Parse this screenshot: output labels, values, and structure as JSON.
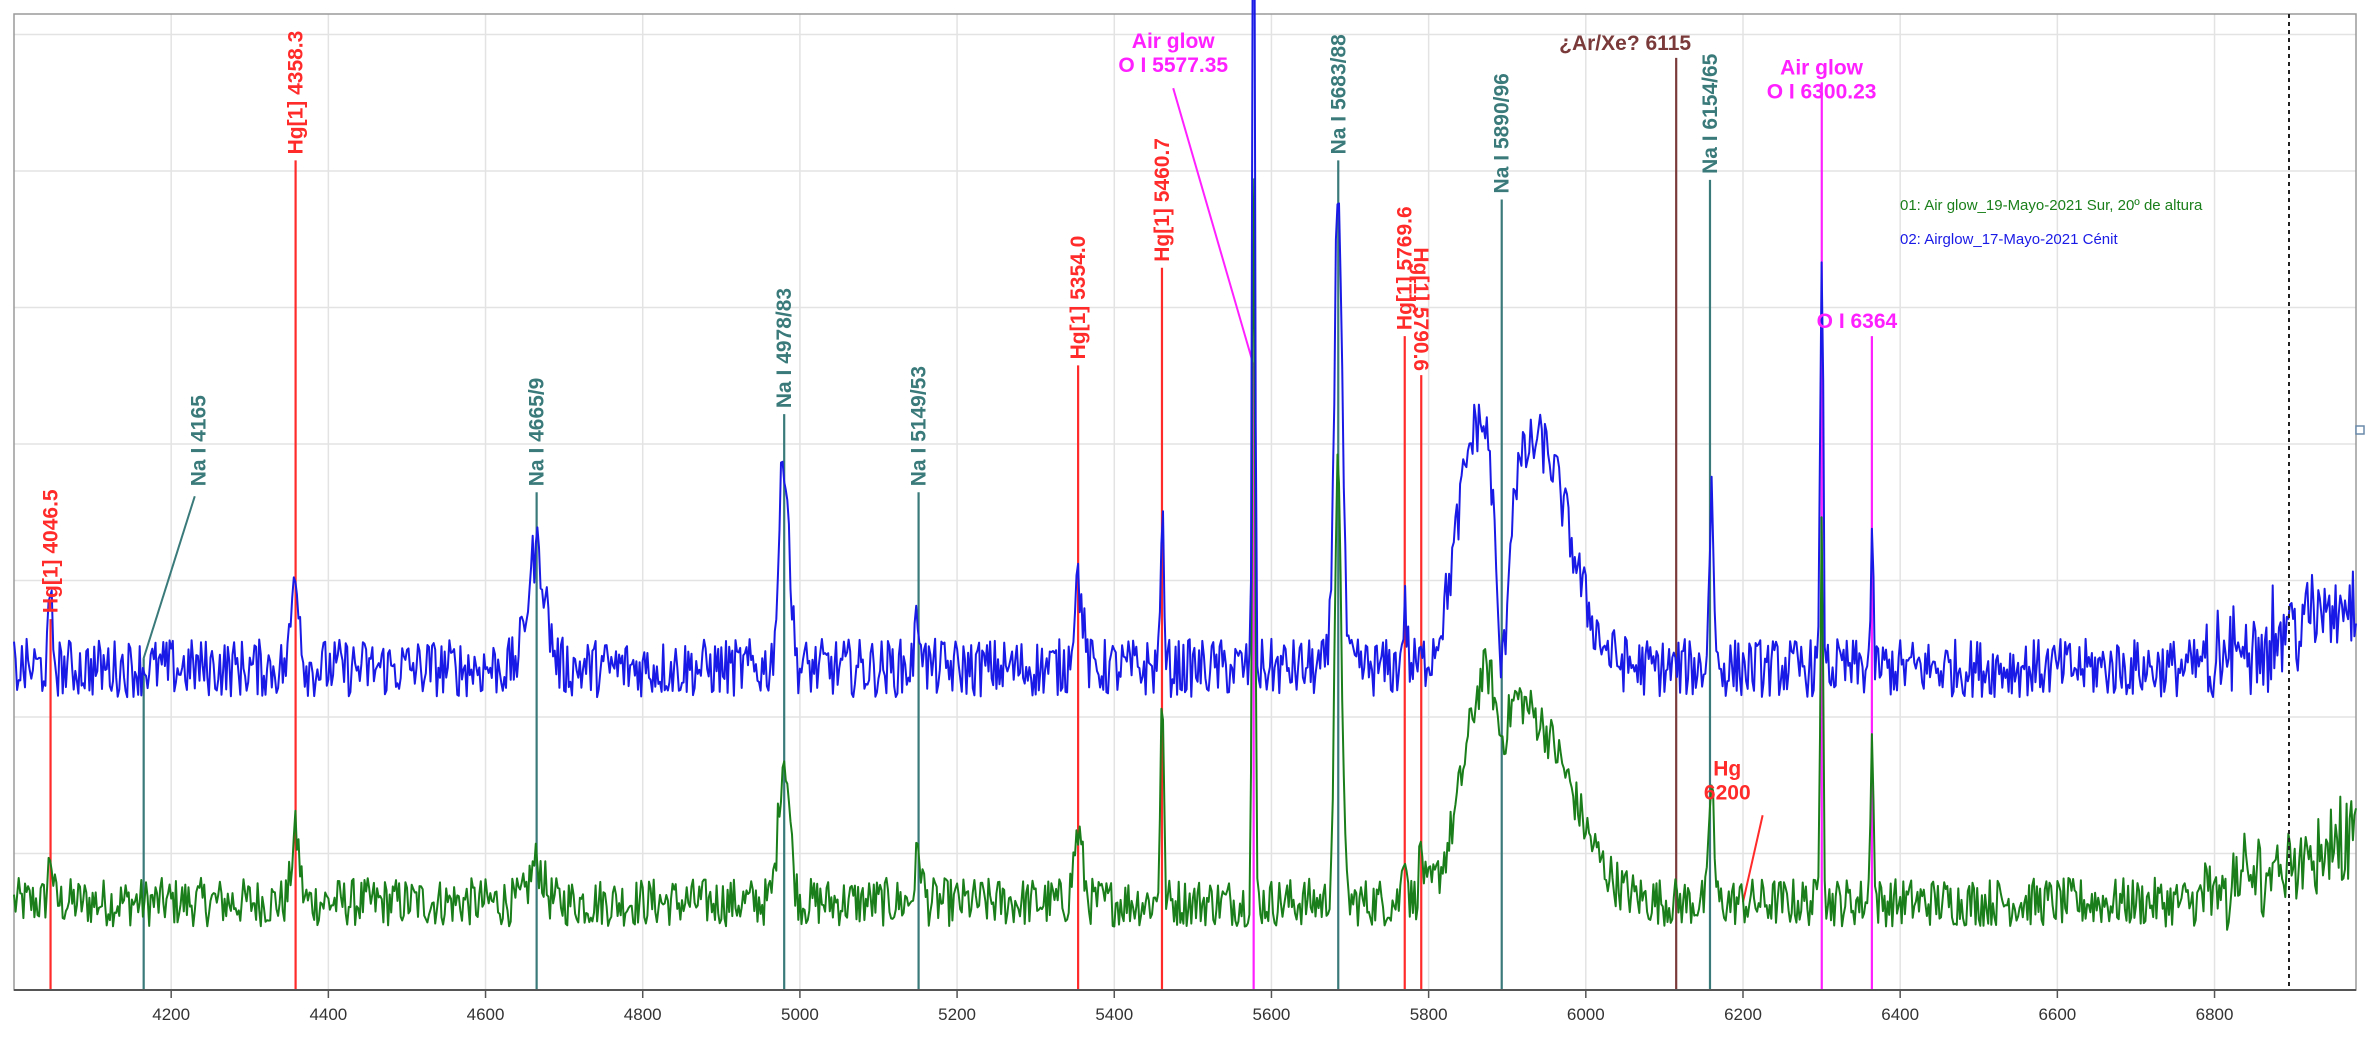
{
  "chart_data": {
    "type": "line",
    "title": "",
    "xlabel": "",
    "ylabel": "",
    "xlim": [
      4000,
      6980
    ],
    "ylim": [
      0,
      1
    ],
    "grid": true,
    "legend_position": "right",
    "x_ticks": [
      4200,
      4400,
      4600,
      4800,
      5000,
      5200,
      5400,
      5600,
      5800,
      6000,
      6200,
      6400,
      6600,
      6800
    ],
    "series": [
      {
        "name": "01: Air glow_19-Mayo-2021 Sur, 20º de altura",
        "color": "#1a7f1a",
        "baseline": 0.09,
        "noise": 0.025,
        "peaks": [
          [
            4046.5,
            0.05,
            4
          ],
          [
            4358.3,
            0.07,
            7
          ],
          [
            4665,
            0.04,
            12
          ],
          [
            4980,
            0.15,
            10
          ],
          [
            5151,
            0.05,
            6
          ],
          [
            5354,
            0.07,
            8
          ],
          [
            5460.7,
            0.22,
            3
          ],
          [
            5577.35,
            0.78,
            2.5
          ],
          [
            5685,
            0.45,
            6
          ],
          [
            5769.6,
            0.06,
            4
          ],
          [
            5790.6,
            0.05,
            4
          ],
          [
            5870,
            0.16,
            40
          ],
          [
            5935,
            0.18,
            70
          ],
          [
            6160,
            0.13,
            4
          ],
          [
            6300.23,
            0.42,
            2.5
          ],
          [
            6364,
            0.19,
            2.5
          ]
        ],
        "dip": [
          5893,
          -0.07,
          12
        ]
      },
      {
        "name": "02: Airglow_17-Mayo-2021 Cénit",
        "color": "#1a1ae6",
        "baseline": 0.33,
        "noise": 0.03,
        "peaks": [
          [
            4046.5,
            0.06,
            4
          ],
          [
            4358.3,
            0.1,
            7
          ],
          [
            4665,
            0.12,
            16
          ],
          [
            4980,
            0.22,
            9
          ],
          [
            5151,
            0.05,
            6
          ],
          [
            5354,
            0.09,
            8
          ],
          [
            5460.7,
            0.16,
            3
          ],
          [
            5577.35,
            0.98,
            2.2
          ],
          [
            5685,
            0.5,
            7
          ],
          [
            5769.6,
            0.06,
            4
          ],
          [
            5860,
            0.22,
            35
          ],
          [
            5940,
            0.23,
            55
          ],
          [
            6160,
            0.18,
            4
          ],
          [
            6300.23,
            0.44,
            2.5
          ],
          [
            6364,
            0.12,
            2.5
          ]
        ],
        "dip": [
          5893,
          -0.2,
          10
        ]
      }
    ],
    "line_markers": [
      {
        "wavelength": 4046.5,
        "label": "Hg[1] 4046.5",
        "color": "#ff2a2a",
        "top": 0.38,
        "rot": 270
      },
      {
        "wavelength": 4358.3,
        "label": "Hg[1] 4358.3",
        "color": "#ff2a2a",
        "top": 0.85,
        "rot": 270
      },
      {
        "wavelength": 4165,
        "label": "Na I 4165",
        "color": "#3a7a7a",
        "top": 0.51,
        "rot": 270,
        "text_x": 4235,
        "line_top": 0.34,
        "leader_to": 4230
      },
      {
        "wavelength": 4665,
        "label": "Na I 4665/9",
        "color": "#3a7a7a",
        "top": 0.51,
        "rot": 270
      },
      {
        "wavelength": 4980,
        "label": "Na I 4978/83",
        "color": "#3a7a7a",
        "top": 0.59,
        "rot": 270
      },
      {
        "wavelength": 5151,
        "label": "Na I 5149/53",
        "color": "#3a7a7a",
        "top": 0.51,
        "rot": 270
      },
      {
        "wavelength": 5354,
        "label": "Hg[1] 5354.0",
        "color": "#ff2a2a",
        "top": 0.64,
        "rot": 270
      },
      {
        "wavelength": 5460.7,
        "label": "Hg[1] 5460.7",
        "color": "#ff2a2a",
        "top": 0.74,
        "rot": 270
      },
      {
        "wavelength": 5577.35,
        "label": "Air glow",
        "label2": "O I 5577.35",
        "color": "#ff20ff",
        "top": 0.64,
        "rot": 0,
        "text_x": 5475,
        "text_y": 0.965,
        "leader_to": 5475
      },
      {
        "wavelength": 5685,
        "label": "Na I 5683/88",
        "color": "#3a7a7a",
        "top": 0.85,
        "rot": 270
      },
      {
        "wavelength": 5769.6,
        "label": "Hg[1] 5769.6",
        "color": "#ff2a2a",
        "top": 0.67,
        "rot": 270
      },
      {
        "wavelength": 5790.6,
        "label": "Hg[1] 5790.6",
        "color": "#ff2a2a",
        "top": 0.63,
        "rot": 90
      },
      {
        "wavelength": 5893,
        "label": "Na I 5890/96",
        "color": "#3a7a7a",
        "top": 0.81,
        "rot": 270
      },
      {
        "wavelength": 6115,
        "label": "¿Ar/Xe? 6115",
        "color": "#7a3a3a",
        "top": 0.955,
        "rot": 0,
        "text_x": 6050
      },
      {
        "wavelength": 6158,
        "label": "Na I 6154/65",
        "color": "#3a7a7a",
        "top": 0.83,
        "rot": 270
      },
      {
        "wavelength": 6300.23,
        "label": "Air glow",
        "label2": "O I 6300.23",
        "color": "#ff20ff",
        "top": 0.93,
        "rot": 0,
        "text_x": 6300
      },
      {
        "wavelength": 6364,
        "label": "O I 6364",
        "color": "#ff20ff",
        "top": 0.67,
        "rot": 0,
        "text_x": 6345
      },
      {
        "wavelength": 6200,
        "label": "Hg",
        "label2": "6200",
        "color": "#ff2a2a",
        "top": 0.09,
        "rot": 0,
        "text_x": 6180,
        "text_y": 0.22,
        "leader_to": 6225,
        "no_vline": true
      }
    ]
  }
}
